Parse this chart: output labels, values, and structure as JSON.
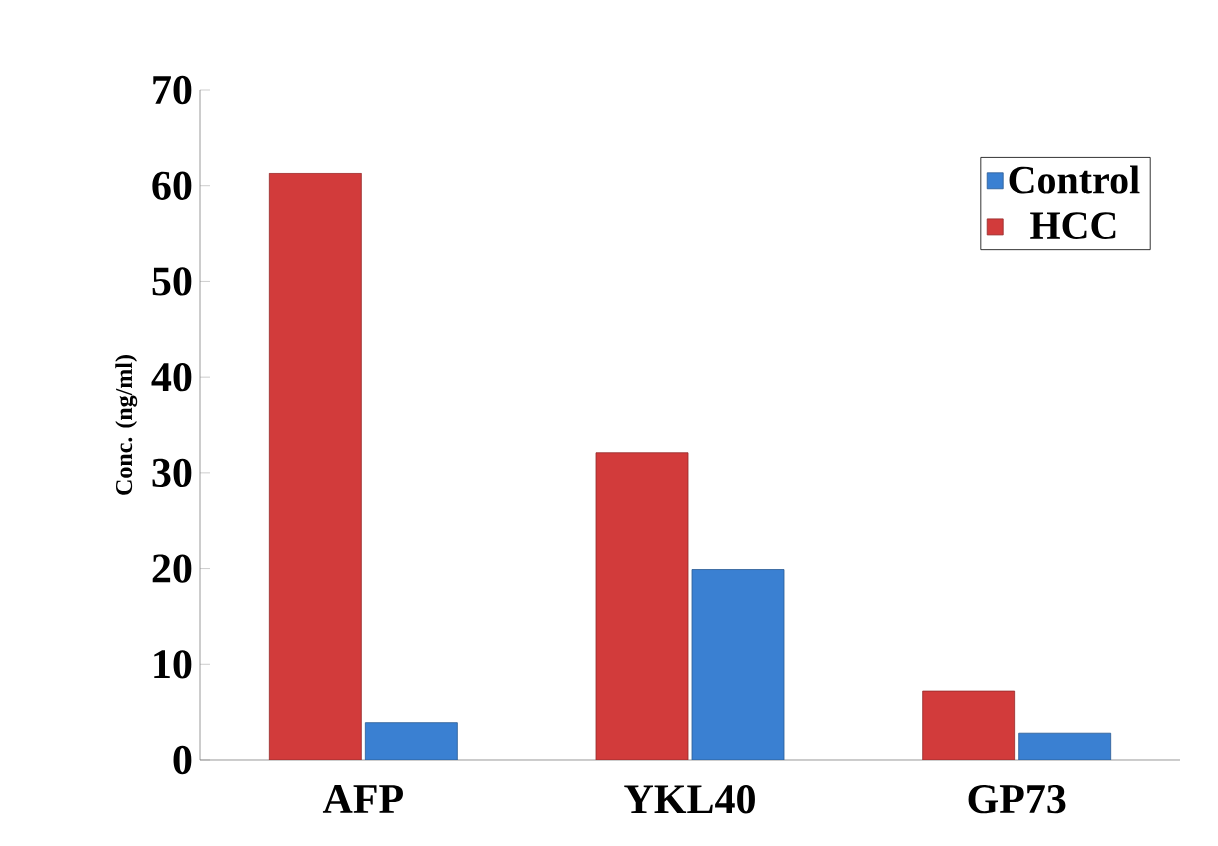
{
  "chart_data": {
    "type": "bar",
    "ylabel": "Conc. (ng/ml)",
    "categories": [
      "AFP",
      "YKL40",
      "GP73"
    ],
    "series": [
      {
        "name": "HCC",
        "color": "#d23b3b",
        "values": [
          61.3,
          32.1,
          7.2
        ]
      },
      {
        "name": "Control",
        "color": "#3a80d2",
        "values": [
          3.9,
          19.9,
          2.8
        ]
      }
    ],
    "ylim": [
      0,
      70
    ],
    "yticks": [
      0,
      10,
      20,
      30,
      40,
      50,
      60,
      70
    ],
    "legend": "top right",
    "grid": false
  }
}
